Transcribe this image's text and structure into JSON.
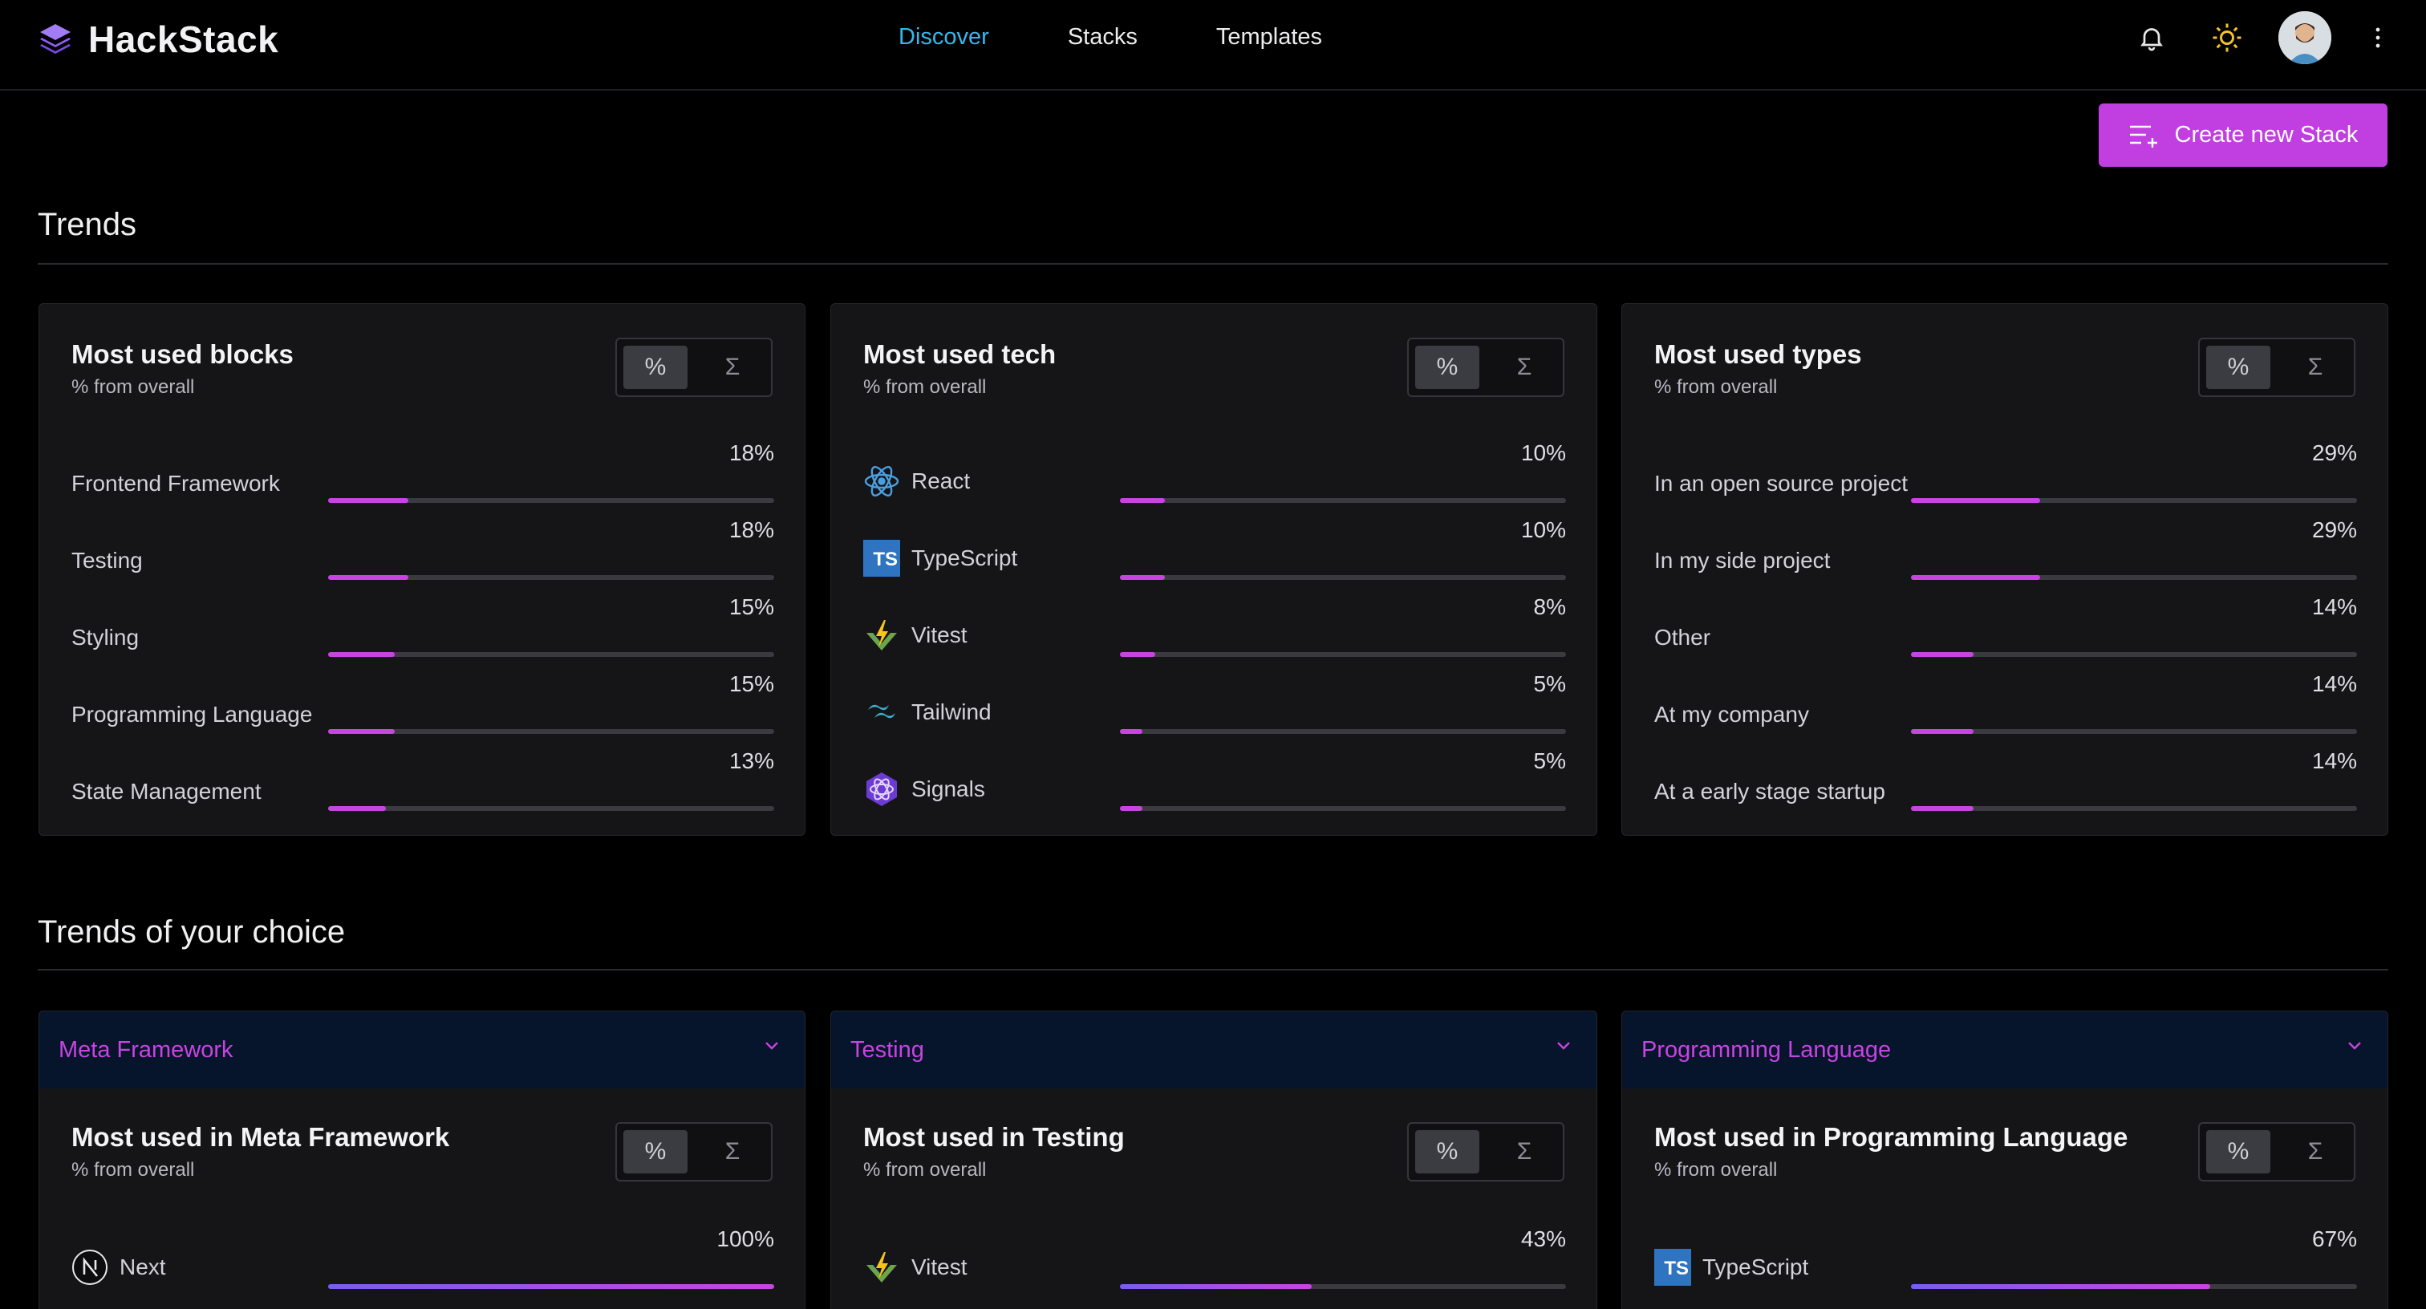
{
  "app": {
    "name": "HackStack"
  },
  "nav": {
    "links": [
      {
        "label": "Discover",
        "active": true
      },
      {
        "label": "Stacks",
        "active": false
      },
      {
        "label": "Templates",
        "active": false
      }
    ],
    "icons": [
      "bell-icon",
      "sun-icon",
      "avatar",
      "kebab-icon"
    ]
  },
  "actions": {
    "create_label": "Create new Stack"
  },
  "toggle": {
    "percent": "%",
    "sum": "Σ"
  },
  "trends": {
    "title": "Trends",
    "cards": [
      {
        "title": "Most used blocks",
        "subtitle": "% from overall",
        "rows": [
          {
            "label": "Frontend Framework",
            "value": "18%",
            "pct": 18
          },
          {
            "label": "Testing",
            "value": "18%",
            "pct": 18
          },
          {
            "label": "Styling",
            "value": "15%",
            "pct": 15
          },
          {
            "label": "Programming Language",
            "value": "15%",
            "pct": 15
          },
          {
            "label": "State Management",
            "value": "13%",
            "pct": 13
          }
        ]
      },
      {
        "title": "Most used tech",
        "subtitle": "% from overall",
        "rows": [
          {
            "label": "React",
            "value": "10%",
            "pct": 10,
            "icon": "react-icon"
          },
          {
            "label": "TypeScript",
            "value": "10%",
            "pct": 10,
            "icon": "typescript-icon"
          },
          {
            "label": "Vitest",
            "value": "8%",
            "pct": 8,
            "icon": "vitest-icon"
          },
          {
            "label": "Tailwind",
            "value": "5%",
            "pct": 5,
            "icon": "tailwind-icon"
          },
          {
            "label": "Signals",
            "value": "5%",
            "pct": 5,
            "icon": "signals-icon"
          }
        ]
      },
      {
        "title": "Most used types",
        "subtitle": "% from overall",
        "rows": [
          {
            "label": "In an open source project",
            "value": "29%",
            "pct": 29
          },
          {
            "label": "In my side project",
            "value": "29%",
            "pct": 29
          },
          {
            "label": "Other",
            "value": "14%",
            "pct": 14
          },
          {
            "label": "At my company",
            "value": "14%",
            "pct": 14
          },
          {
            "label": "At a early stage startup",
            "value": "14%",
            "pct": 14
          }
        ]
      }
    ]
  },
  "choice": {
    "title": "Trends of your choice",
    "cards": [
      {
        "selected": "Meta Framework",
        "title": "Most used in Meta Framework",
        "subtitle": "% from overall",
        "rows": [
          {
            "label": "Next",
            "value": "100%",
            "pct": 100,
            "icon": "nextjs-icon"
          }
        ]
      },
      {
        "selected": "Testing",
        "title": "Most used in Testing",
        "subtitle": "% from overall",
        "rows": [
          {
            "label": "Vitest",
            "value": "43%",
            "pct": 43,
            "icon": "vitest-icon"
          }
        ]
      },
      {
        "selected": "Programming Language",
        "title": "Most used in Programming Language",
        "subtitle": "% from overall",
        "rows": [
          {
            "label": "TypeScript",
            "value": "67%",
            "pct": 67,
            "icon": "typescript-icon"
          }
        ]
      }
    ]
  },
  "colors": {
    "accent": "#c13fe0",
    "nav_active": "#35b8ec",
    "card_bg": "#151518",
    "select_bg": "#06142c"
  }
}
